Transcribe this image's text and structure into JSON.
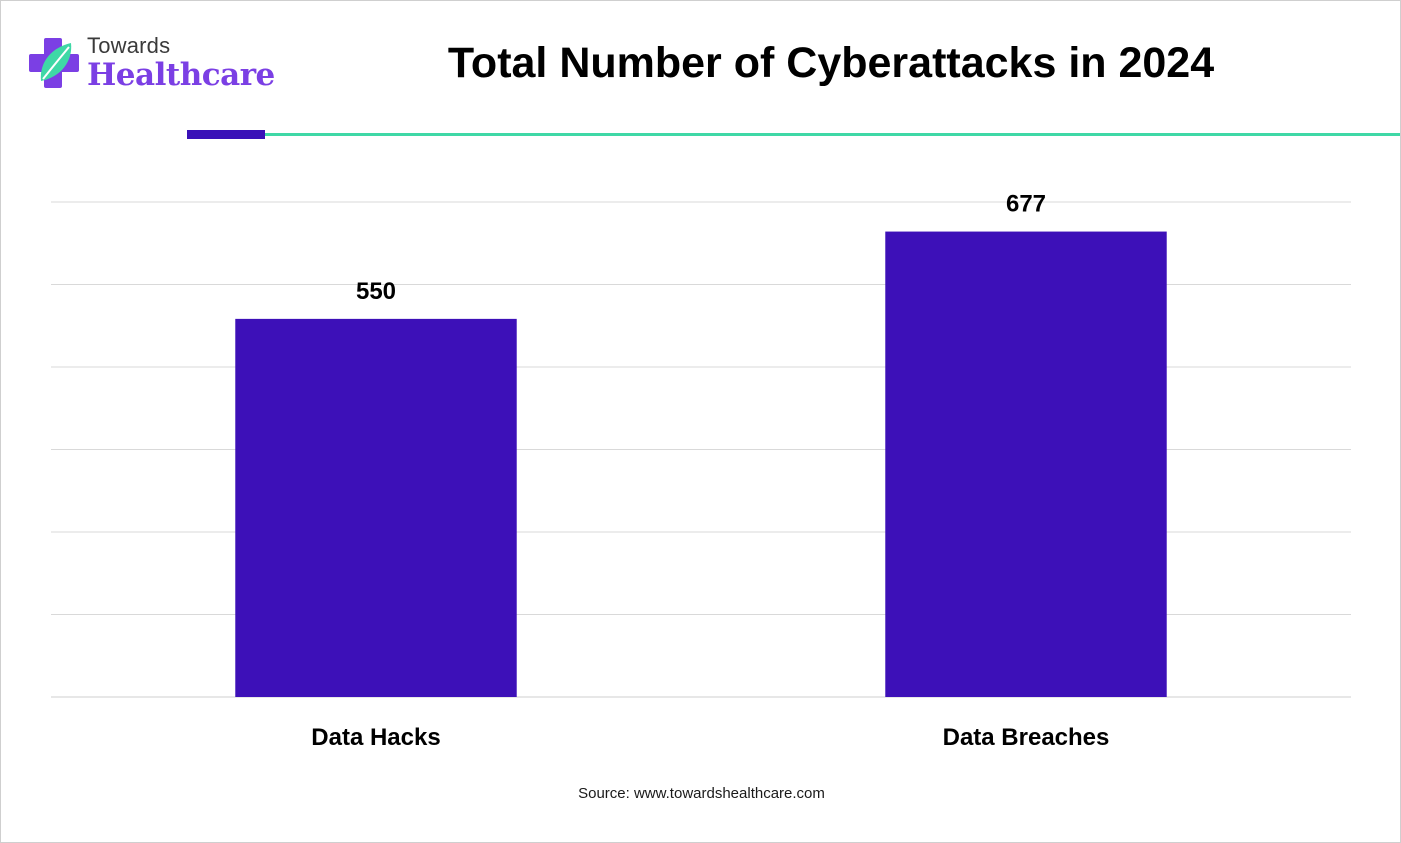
{
  "brand": {
    "line1": "Towards",
    "line2": "Healthcare",
    "colors": {
      "purple": "#7b3fe4",
      "teal": "#3fd8a6",
      "dark_purple": "#3a11b8"
    },
    "icon": "medical-cross-leaf-icon"
  },
  "chart_data": {
    "type": "bar",
    "title": "Total Number of Cyberattacks in 2024",
    "categories": [
      "Data Hacks",
      "Data Breaches"
    ],
    "values": [
      550,
      677
    ],
    "data_labels": [
      "550",
      "677"
    ],
    "xlabel": "",
    "ylabel": "",
    "ylim": [
      0,
      720
    ],
    "grid": true,
    "bar_color": "#3d10b8"
  },
  "footer": {
    "source": "Source: www.towardshealthcare.com"
  }
}
